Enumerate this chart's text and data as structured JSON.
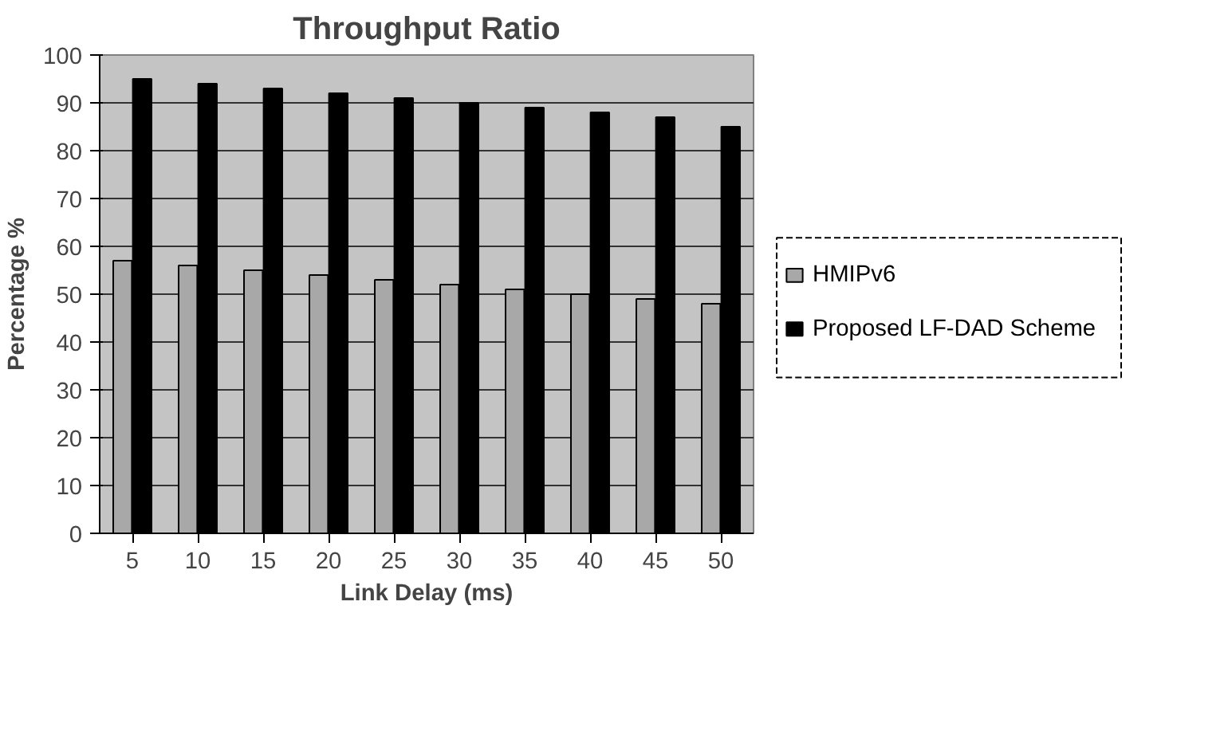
{
  "chart_data": {
    "type": "bar",
    "title": "Throughput Ratio",
    "xlabel": "Link Delay (ms)",
    "ylabel": "Percentage %",
    "categories": [
      "5",
      "10",
      "15",
      "20",
      "25",
      "30",
      "35",
      "40",
      "45",
      "50"
    ],
    "series": [
      {
        "name": "HMIPv6",
        "color": "#a8a8a8",
        "values": [
          57,
          56,
          55,
          54,
          53,
          52,
          51,
          50,
          49,
          48
        ]
      },
      {
        "name": "Proposed LF-DAD Scheme",
        "color": "#000000",
        "values": [
          95,
          94,
          93,
          92,
          91,
          90,
          89,
          88,
          87,
          85
        ]
      }
    ],
    "ylim": [
      0,
      100
    ],
    "yticks": [
      0,
      10,
      20,
      30,
      40,
      50,
      60,
      70,
      80,
      90,
      100
    ],
    "grid": "y",
    "legend": "right"
  }
}
